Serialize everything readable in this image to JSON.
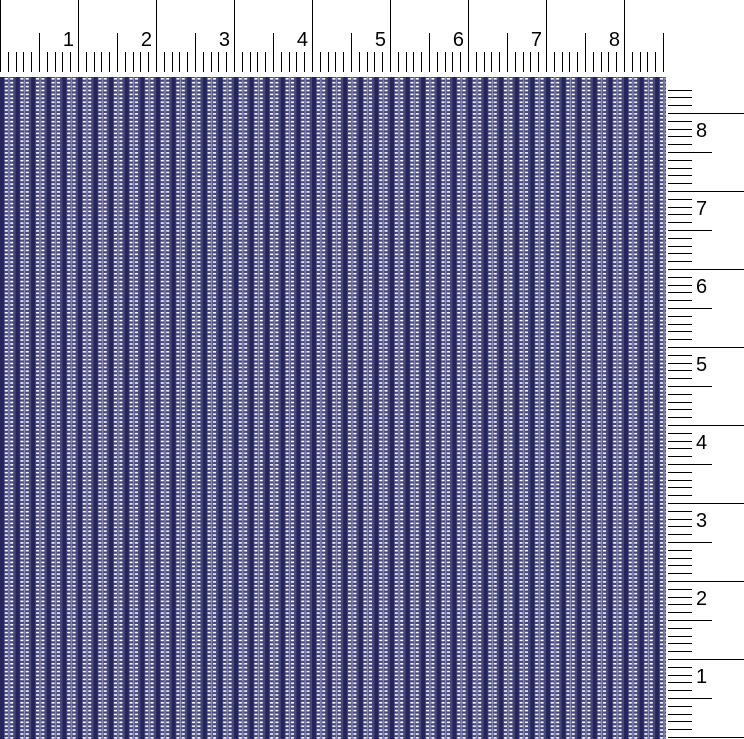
{
  "rulers": {
    "top": {
      "labels": [
        "1",
        "2",
        "3",
        "4",
        "5",
        "6",
        "7",
        "8"
      ]
    },
    "right": {
      "labels": [
        "8",
        "7",
        "6",
        "5",
        "4",
        "3",
        "2",
        "1"
      ]
    }
  },
  "swatch": {
    "pattern": "navy check with white dashes",
    "colors": {
      "base": "#46487c",
      "dark_stripe": "#24255a",
      "light": "#8e90c4",
      "dash": "#ffffff"
    }
  }
}
